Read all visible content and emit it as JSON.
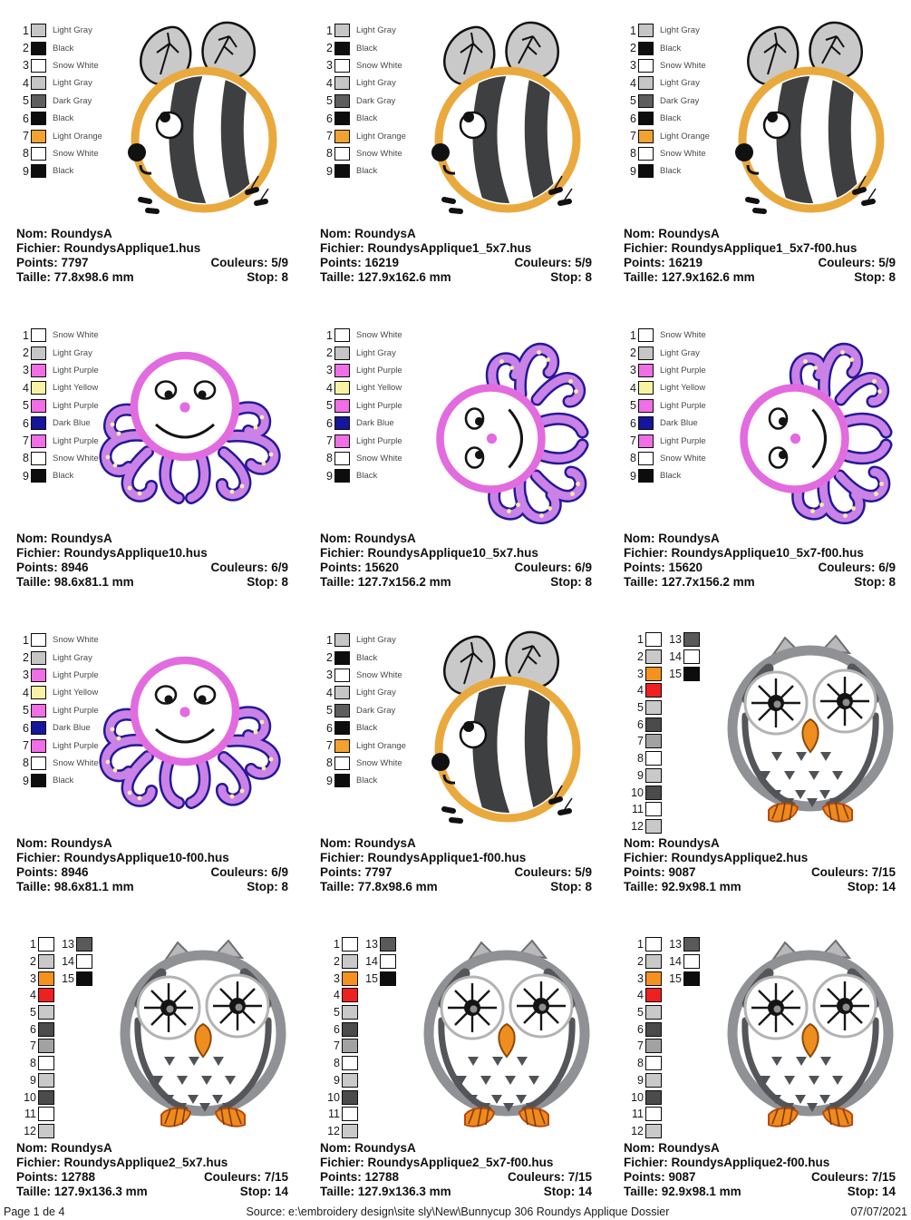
{
  "page": {
    "footer": {
      "left": "Page 1 de 4",
      "center": "Source: e:\\embroidery design\\site sly\\New\\Bunnycup 306 Roundys Applique Dossier",
      "right": "07/07/2021"
    }
  },
  "labels": {
    "nom": "Nom:",
    "fichier": "Fichier:",
    "points": "Points:",
    "couleurs": "Couleurs:",
    "taille": "Taille:",
    "stop": "Stop:"
  },
  "legends": {
    "bee": [
      {
        "num": "1",
        "color": "#c6c6c6",
        "label": "Light Gray"
      },
      {
        "num": "2",
        "color": "#0d0d0d",
        "label": "Black"
      },
      {
        "num": "3",
        "color": "#ffffff",
        "label": "Snow White"
      },
      {
        "num": "4",
        "color": "#c6c6c6",
        "label": "Light Gray"
      },
      {
        "num": "5",
        "color": "#5e5e5e",
        "label": "Dark Gray"
      },
      {
        "num": "6",
        "color": "#0d0d0d",
        "label": "Black"
      },
      {
        "num": "7",
        "color": "#f2a231",
        "label": "Light Orange"
      },
      {
        "num": "8",
        "color": "#ffffff",
        "label": "Snow White"
      },
      {
        "num": "9",
        "color": "#0d0d0d",
        "label": "Black"
      }
    ],
    "octopus": [
      {
        "num": "1",
        "color": "#ffffff",
        "label": "Snow White"
      },
      {
        "num": "2",
        "color": "#c6c6c6",
        "label": "Light Gray"
      },
      {
        "num": "3",
        "color": "#f06ee6",
        "label": "Light Purple"
      },
      {
        "num": "4",
        "color": "#f6f3a4",
        "label": "Light Yellow"
      },
      {
        "num": "5",
        "color": "#f06ee6",
        "label": "Light Purple"
      },
      {
        "num": "6",
        "color": "#16169c",
        "label": "Dark Blue"
      },
      {
        "num": "7",
        "color": "#f06ee6",
        "label": "Light Purple"
      },
      {
        "num": "8",
        "color": "#ffffff",
        "label": "Snow White"
      },
      {
        "num": "9",
        "color": "#0d0d0d",
        "label": "Black"
      }
    ],
    "owl_main": [
      {
        "num": "1",
        "color": "#ffffff"
      },
      {
        "num": "2",
        "color": "#c9c9c9"
      },
      {
        "num": "3",
        "color": "#f5921e"
      },
      {
        "num": "4",
        "color": "#ee2020"
      },
      {
        "num": "5",
        "color": "#c9c9c9"
      },
      {
        "num": "6",
        "color": "#4b4b4b"
      },
      {
        "num": "7",
        "color": "#a2a2a2"
      },
      {
        "num": "8",
        "color": "#ffffff"
      },
      {
        "num": "9",
        "color": "#c9c9c9"
      },
      {
        "num": "10",
        "color": "#4b4b4b"
      },
      {
        "num": "11",
        "color": "#ffffff"
      },
      {
        "num": "12",
        "color": "#c9c9c9"
      }
    ],
    "owl_extra": [
      {
        "num": "13",
        "color": "#595959"
      },
      {
        "num": "14",
        "color": "#ffffff"
      },
      {
        "num": "15",
        "color": "#0d0d0d"
      }
    ]
  },
  "cells": [
    {
      "nom": "RoundysA",
      "fichier": "RoundysApplique1.hus",
      "points": "7797",
      "couleurs": "5/9",
      "taille": "77.8x98.6 mm",
      "stop": "8"
    },
    {
      "nom": "RoundysA",
      "fichier": "RoundysApplique1_5x7.hus",
      "points": "16219",
      "couleurs": "5/9",
      "taille": "127.9x162.6 mm",
      "stop": "8"
    },
    {
      "nom": "RoundysA",
      "fichier": "RoundysApplique1_5x7-f00.hus",
      "points": "16219",
      "couleurs": "5/9",
      "taille": "127.9x162.6 mm",
      "stop": "8"
    },
    {
      "nom": "RoundysA",
      "fichier": "RoundysApplique10.hus",
      "points": "8946",
      "couleurs": "6/9",
      "taille": "98.6x81.1 mm",
      "stop": "8"
    },
    {
      "nom": "RoundysA",
      "fichier": "RoundysApplique10_5x7.hus",
      "points": "15620",
      "couleurs": "6/9",
      "taille": "127.7x156.2 mm",
      "stop": "8"
    },
    {
      "nom": "RoundysA",
      "fichier": "RoundysApplique10_5x7-f00.hus",
      "points": "15620",
      "couleurs": "6/9",
      "taille": "127.7x156.2 mm",
      "stop": "8"
    },
    {
      "nom": "RoundysA",
      "fichier": "RoundysApplique10-f00.hus",
      "points": "8946",
      "couleurs": "6/9",
      "taille": "98.6x81.1 mm",
      "stop": "8"
    },
    {
      "nom": "RoundysA",
      "fichier": "RoundysApplique1-f00.hus",
      "points": "7797",
      "couleurs": "5/9",
      "taille": "77.8x98.6 mm",
      "stop": "8"
    },
    {
      "nom": "RoundysA",
      "fichier": "RoundysApplique2.hus",
      "points": "9087",
      "couleurs": "7/15",
      "taille": "92.9x98.1 mm",
      "stop": "14"
    },
    {
      "nom": "RoundysA",
      "fichier": "RoundysApplique2_5x7.hus",
      "points": "12788",
      "couleurs": "7/15",
      "taille": "127.9x136.3 mm",
      "stop": "14"
    },
    {
      "nom": "RoundysA",
      "fichier": "RoundysApplique2_5x7-f00.hus",
      "points": "12788",
      "couleurs": "7/15",
      "taille": "127.9x136.3 mm",
      "stop": "14"
    },
    {
      "nom": "RoundysA",
      "fichier": "RoundysApplique2-f00.hus",
      "points": "9087",
      "couleurs": "7/15",
      "taille": "92.9x98.1 mm",
      "stop": "14"
    }
  ]
}
